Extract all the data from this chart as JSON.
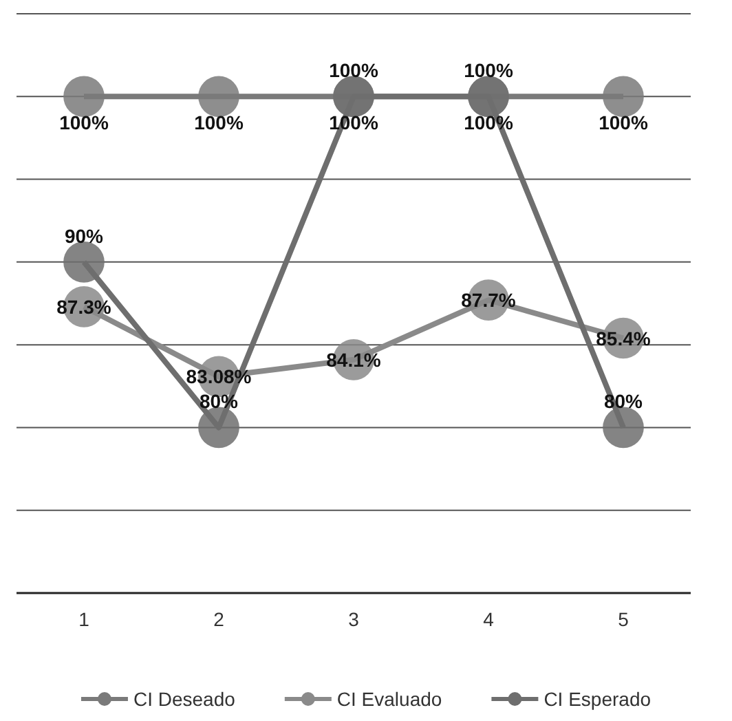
{
  "chart_data": {
    "type": "line",
    "categories": [
      "1",
      "2",
      "3",
      "4",
      "5"
    ],
    "ylim": [
      70,
      105
    ],
    "yticks": [
      {
        "value": 75,
        "label": null
      },
      {
        "value": 80,
        "label": null
      },
      {
        "value": 85,
        "label": null
      },
      {
        "value": 90,
        "label": null
      },
      {
        "value": 95,
        "label": null
      },
      {
        "value": 100,
        "label": null
      },
      {
        "value": 105,
        "label": null
      }
    ],
    "tick_labels": "x",
    "grid": "y",
    "legend": "bottom",
    "marker": "circle",
    "line_style": "solid",
    "series": [
      {
        "name": "CI Deseado",
        "color": "#7a7a7a",
        "values": [
          100,
          100,
          100,
          100,
          100
        ],
        "value_labels": [
          "100%",
          "100%",
          "100%",
          "100%",
          "100%"
        ]
      },
      {
        "name": "CI Evaluado",
        "color": "#8a8a8a",
        "values": [
          87.3,
          83.08,
          84.1,
          87.7,
          85.4
        ],
        "value_labels": [
          "87.3%",
          "83.08%",
          "84.1%",
          "87.7%",
          "85.4%"
        ]
      },
      {
        "name": "CI Esperado",
        "color": "#6e6e6e",
        "values": [
          90,
          80,
          100,
          100,
          80
        ],
        "value_labels": [
          "90%",
          "80%",
          "100%",
          "100%",
          "80%"
        ]
      }
    ]
  }
}
